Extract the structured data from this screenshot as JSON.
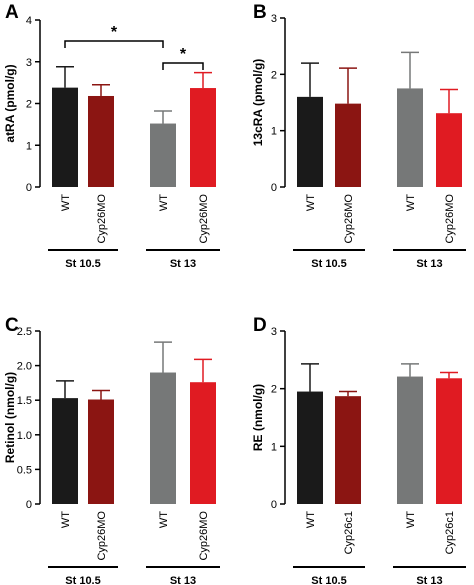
{
  "figure": {
    "background": "#ffffff",
    "axis_color": "#000000"
  },
  "chart_data": [
    {
      "panel": "A",
      "type": "bar",
      "ylabel": "atRA (pmol/g)",
      "ylim": [
        0,
        4
      ],
      "yticks": [
        0,
        1,
        2,
        3,
        4
      ],
      "categories": [
        "WT",
        "Cyp26MO",
        "WT",
        "Cyp26MO"
      ],
      "values": [
        2.38,
        2.18,
        1.52,
        2.37
      ],
      "errors": [
        0.5,
        0.27,
        0.3,
        0.37
      ],
      "colors": [
        "#1a1a1a",
        "#8b1512",
        "#767878",
        "#e01b22"
      ],
      "groups": [
        {
          "label": "St 10.5",
          "bars": [
            0,
            1
          ]
        },
        {
          "label": "St 13",
          "bars": [
            2,
            3
          ]
        }
      ],
      "significance": [
        {
          "bars": [
            0,
            2
          ],
          "label": "*"
        },
        {
          "bars": [
            2,
            3
          ],
          "label": "*"
        }
      ]
    },
    {
      "panel": "B",
      "type": "bar",
      "ylabel": "13cRA (pmol/g)",
      "ylim": [
        0,
        3
      ],
      "yticks": [
        0,
        1,
        2,
        3
      ],
      "categories": [
        "WT",
        "Cyp26MO",
        "WT",
        "Cyp26MO"
      ],
      "values": [
        1.6,
        1.48,
        1.75,
        1.31
      ],
      "errors": [
        0.6,
        0.63,
        0.64,
        0.42
      ],
      "colors": [
        "#1a1a1a",
        "#8b1512",
        "#767878",
        "#e01b22"
      ],
      "groups": [
        {
          "label": "St 10.5",
          "bars": [
            0,
            1
          ]
        },
        {
          "label": "St 13",
          "bars": [
            2,
            3
          ]
        }
      ],
      "significance": []
    },
    {
      "panel": "C",
      "type": "bar",
      "ylabel": "Retinol (nmol/g)",
      "ylim": [
        0,
        2.5
      ],
      "yticks": [
        0,
        0.5,
        1,
        1.5,
        2,
        2.5
      ],
      "ytick_labels": [
        "0",
        "0.5",
        "1.0",
        "1.5",
        "2.0",
        "2.5"
      ],
      "categories": [
        "WT",
        "Cyp26MO",
        "WT",
        "Cyp26MO"
      ],
      "values": [
        1.53,
        1.51,
        1.9,
        1.76
      ],
      "errors": [
        0.25,
        0.13,
        0.44,
        0.33
      ],
      "colors": [
        "#1a1a1a",
        "#8b1512",
        "#767878",
        "#e01b22"
      ],
      "groups": [
        {
          "label": "St 10.5",
          "bars": [
            0,
            1
          ]
        },
        {
          "label": "St 13",
          "bars": [
            2,
            3
          ]
        }
      ],
      "significance": []
    },
    {
      "panel": "D",
      "type": "bar",
      "ylabel": "RE (nmol/g)",
      "ylim": [
        0,
        3
      ],
      "yticks": [
        0,
        1,
        2,
        3
      ],
      "categories": [
        "WT",
        "Cyp26c1",
        "WT",
        "Cyp26c1"
      ],
      "values": [
        1.95,
        1.87,
        2.21,
        2.18
      ],
      "errors": [
        0.48,
        0.08,
        0.22,
        0.1
      ],
      "colors": [
        "#1a1a1a",
        "#8b1512",
        "#767878",
        "#e01b22"
      ],
      "groups": [
        {
          "label": "St 10.5",
          "bars": [
            0,
            1
          ]
        },
        {
          "label": "St 13",
          "bars": [
            2,
            3
          ]
        }
      ],
      "significance": []
    }
  ]
}
